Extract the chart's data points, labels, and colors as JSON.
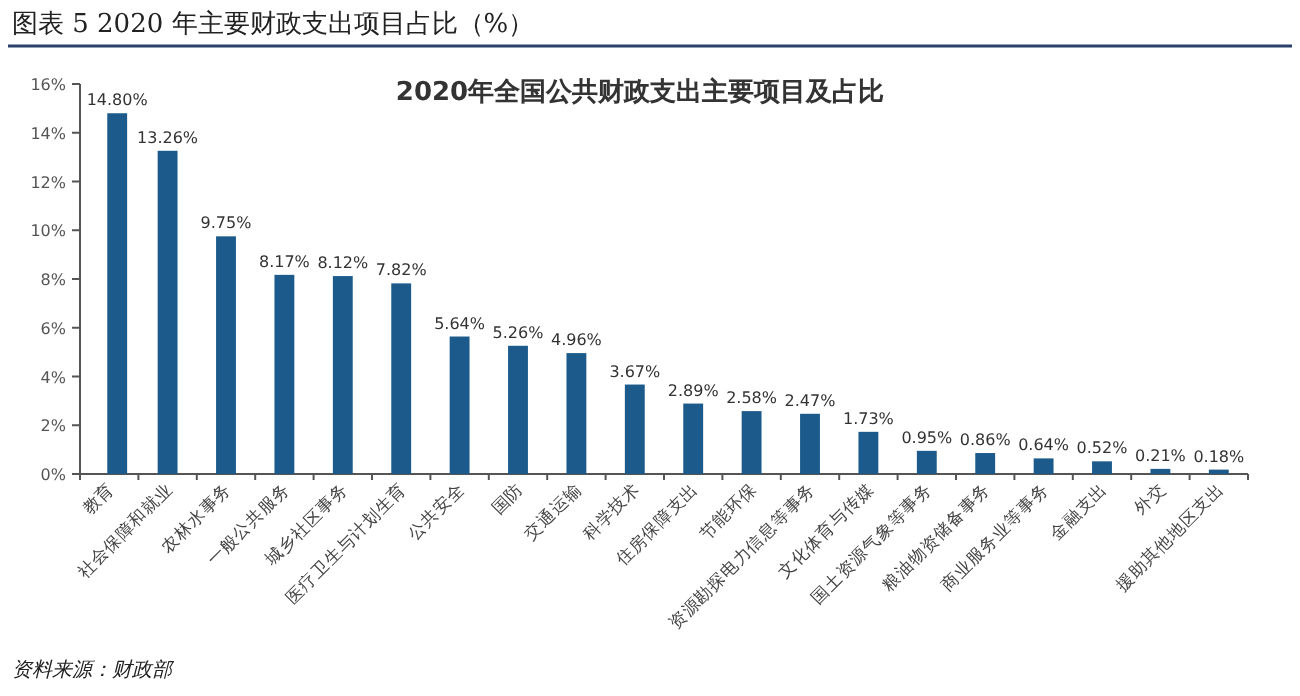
{
  "chart_data": {
    "type": "bar",
    "title": "图表 5 2020 年主要财政支出项目占比（%）",
    "subtitle": "2020年全国公共财政支出主要项目及占比",
    "categories": [
      "教育",
      "社会保障和就业",
      "农林水事务",
      "一般公共服务",
      "城乡社区事务",
      "医疗卫生与计划生育",
      "公共安全",
      "国防",
      "交通运输",
      "科学技术",
      "住房保障支出",
      "节能环保",
      "资源勘探电力信息等事务",
      "文化体育与传媒",
      "国土资源气象等事务",
      "粮油物资储备事务",
      "商业服务业等事务",
      "金融支出",
      "外交",
      "援助其他地区支出"
    ],
    "values": [
      14.8,
      13.26,
      9.75,
      8.17,
      8.12,
      7.82,
      5.64,
      5.26,
      4.96,
      3.67,
      2.89,
      2.58,
      2.47,
      1.73,
      0.95,
      0.86,
      0.64,
      0.52,
      0.21,
      0.18
    ],
    "value_labels": [
      "14.80%",
      "13.26%",
      "9.75%",
      "8.17%",
      "8.12%",
      "7.82%",
      "5.64%",
      "5.26%",
      "4.96%",
      "3.67%",
      "2.89%",
      "2.58%",
      "2.47%",
      "1.73%",
      "0.95%",
      "0.86%",
      "0.64%",
      "0.52%",
      "0.21%",
      "0.18%"
    ],
    "color": "#1b5a8a",
    "ylim": [
      0,
      16
    ],
    "yticks": [
      {
        "value": 0,
        "label": "0%"
      },
      {
        "value": 2,
        "label": "2%"
      },
      {
        "value": 4,
        "label": "4%"
      },
      {
        "value": 6,
        "label": "6%"
      },
      {
        "value": 8,
        "label": "8%"
      },
      {
        "value": 10,
        "label": "10%"
      },
      {
        "value": 12,
        "label": "12%"
      },
      {
        "value": 14,
        "label": "14%"
      },
      {
        "value": 16,
        "label": "16%"
      }
    ],
    "annotations": [
      "资料来源：财政部"
    ]
  }
}
